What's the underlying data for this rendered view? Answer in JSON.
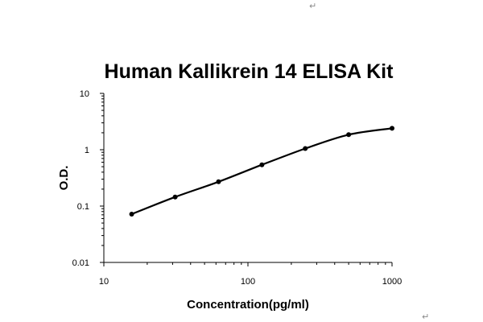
{
  "chart_data": {
    "type": "line",
    "title": "Human Kallikrein 14 ELISA Kit",
    "xlabel": "Concentration(pg/ml)",
    "ylabel": "O.D.",
    "x_scale": "log",
    "y_scale": "log",
    "xlim": [
      10,
      1000
    ],
    "ylim": [
      0.01,
      10
    ],
    "x_ticks": [
      "10",
      "100",
      "1000"
    ],
    "y_ticks": [
      "0.01",
      "0.1",
      "1",
      "10"
    ],
    "grid": false,
    "legend": "none",
    "series": [
      {
        "x": [
          15.6,
          31.25,
          62.5,
          125,
          250,
          500,
          1000
        ],
        "y": [
          0.072,
          0.145,
          0.27,
          0.54,
          1.05,
          1.85,
          2.4
        ]
      }
    ],
    "colors": {
      "line": "#000000",
      "axis": "#000000"
    }
  },
  "marks": {
    "paragraph_mark": "↵"
  }
}
